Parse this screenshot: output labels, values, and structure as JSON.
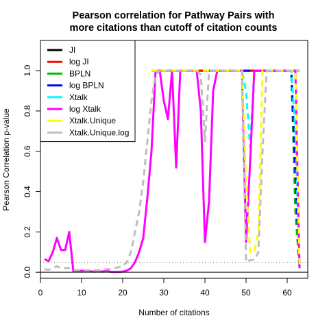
{
  "chart_data": {
    "type": "line",
    "title_lines": [
      "Pearson correlation for Pathway Pairs with",
      "more citations than cutoff of citation counts"
    ],
    "xlabel": "Number of citations",
    "ylabel": "Pearson Correlation p-value",
    "xlim": [
      0,
      65
    ],
    "ylim": [
      -0.03,
      1.15
    ],
    "xticks": [
      0,
      10,
      20,
      30,
      40,
      50,
      60
    ],
    "yticks": [
      0.0,
      0.2,
      0.4,
      0.6,
      0.8,
      1.0
    ],
    "ytick_labels": [
      "0.0",
      "0.2",
      "0.4",
      "0.6",
      "0.8",
      "1.0"
    ],
    "reference_lines": [
      {
        "y": 0.05,
        "style": "dotted",
        "color": "#555555"
      },
      {
        "y": 0.0,
        "style": "solid",
        "color": "#000000"
      }
    ],
    "legend_position": "top-left",
    "series": [
      {
        "name": "JI",
        "color": "#000000",
        "dash": "solid",
        "x": [
          27,
          28,
          29,
          30,
          31,
          32,
          33,
          34,
          35,
          36,
          37,
          38,
          39,
          40,
          41,
          42,
          43,
          44,
          45,
          46,
          47,
          48,
          49,
          50,
          51,
          52,
          53,
          54,
          55,
          56,
          57,
          58,
          59,
          60,
          61,
          62,
          63
        ],
        "y": [
          1,
          1,
          1,
          1,
          1,
          1,
          1,
          1,
          1,
          1,
          1,
          1,
          1,
          1,
          1,
          1,
          1,
          1,
          1,
          1,
          1,
          1,
          1,
          1,
          1,
          1,
          1,
          1,
          1,
          1,
          1,
          1,
          1,
          1,
          1,
          1,
          1
        ]
      },
      {
        "name": "log JI",
        "color": "#ff0000",
        "dash": "solid",
        "x": [
          27,
          28,
          29,
          30,
          31,
          32,
          33,
          34,
          35,
          36,
          37,
          38,
          39,
          40,
          41,
          42,
          43,
          44,
          45,
          46,
          47,
          48,
          49,
          50,
          51,
          52,
          53,
          54,
          55,
          56,
          57,
          58,
          59,
          60,
          61,
          62,
          63
        ],
        "y": [
          1,
          1,
          1,
          1,
          1,
          1,
          1,
          1,
          1,
          1,
          1,
          1,
          1,
          1,
          1,
          1,
          1,
          1,
          1,
          1,
          1,
          1,
          1,
          1,
          1,
          1,
          1,
          1,
          1,
          1,
          1,
          1,
          1,
          1,
          1,
          1,
          1
        ]
      },
      {
        "name": "BPLN",
        "color": "#00bb00",
        "dash": "dash",
        "x": [
          27,
          30,
          35,
          40,
          45,
          50,
          55,
          60,
          61,
          62,
          63
        ],
        "y": [
          1,
          1,
          1,
          1,
          1,
          1,
          1,
          1,
          1,
          0.3,
          0.02
        ]
      },
      {
        "name": "log BPLN",
        "color": "#0000ff",
        "dash": "dash",
        "x": [
          27,
          30,
          35,
          40,
          45,
          48,
          49,
          50,
          51,
          52,
          55,
          60,
          61,
          62,
          63
        ],
        "y": [
          1,
          1,
          1,
          1,
          1,
          1,
          1,
          1,
          1,
          1,
          1,
          1,
          1,
          0.5,
          0.02
        ]
      },
      {
        "name": "Xtalk",
        "color": "#00ffff",
        "dash": "dash",
        "x": [
          27,
          30,
          35,
          40,
          45,
          48,
          49,
          50,
          51,
          52,
          55,
          60,
          61,
          62,
          63
        ],
        "y": [
          1,
          1,
          1,
          1,
          1,
          1,
          1,
          0.9,
          0.62,
          1,
          1,
          1,
          1,
          0.7,
          0.02
        ]
      },
      {
        "name": "log Xtalk",
        "color": "#ff00ff",
        "dash": "solid",
        "x": [
          1,
          2,
          3,
          4,
          5,
          6,
          7,
          8,
          9,
          10,
          11,
          12,
          13,
          14,
          15,
          16,
          17,
          18,
          19,
          20,
          21,
          22,
          23,
          24,
          25,
          26,
          27,
          28,
          29,
          30,
          31,
          32,
          33,
          34,
          35,
          36,
          37,
          38,
          39,
          40,
          41,
          42,
          43,
          44,
          45,
          46,
          47,
          48,
          49,
          50,
          51,
          52,
          53,
          54,
          55,
          56,
          57,
          58,
          59,
          60,
          61,
          62,
          63
        ],
        "y": [
          0.065,
          0.055,
          0.1,
          0.17,
          0.11,
          0.11,
          0.2,
          0.005,
          0.005,
          0.008,
          0.005,
          0.005,
          0.003,
          0.005,
          0.003,
          0.008,
          0.002,
          0.002,
          0.002,
          0.003,
          0.008,
          0.02,
          0.05,
          0.1,
          0.17,
          0.37,
          0.6,
          1.0,
          1.0,
          0.85,
          0.76,
          1.0,
          0.52,
          1.0,
          1.0,
          1.0,
          1.0,
          1.0,
          0.8,
          0.15,
          0.35,
          0.9,
          1.0,
          1.0,
          1.0,
          1.0,
          1.0,
          1.0,
          1.0,
          0.15,
          0.55,
          1.0,
          1.0,
          1.0,
          1.0,
          1.0,
          1.0,
          1.0,
          1.0,
          1.0,
          1.0,
          1.0,
          0.02
        ]
      },
      {
        "name": "Xtalk.Unique",
        "color": "#ffff00",
        "dash": "dash",
        "x": [
          27,
          30,
          35,
          40,
          45,
          48,
          49,
          50,
          51,
          52,
          53,
          54,
          55,
          60,
          61,
          62,
          63
        ],
        "y": [
          1,
          1,
          1,
          1,
          1,
          1,
          1,
          0.45,
          0.1,
          0.1,
          0.2,
          1,
          1,
          1,
          1,
          1,
          0.02
        ]
      },
      {
        "name": "Xtalk.Unique.log",
        "color": "#bebebe",
        "dash": "dash",
        "x": [
          1,
          2,
          3,
          4,
          5,
          6,
          7,
          8,
          9,
          10,
          11,
          12,
          13,
          14,
          15,
          16,
          17,
          18,
          19,
          20,
          21,
          22,
          23,
          24,
          25,
          26,
          27,
          28,
          29,
          30,
          35,
          38,
          39,
          40,
          41,
          42,
          45,
          48,
          49,
          50,
          51,
          52,
          53,
          54,
          55,
          60,
          63
        ],
        "y": [
          0.015,
          0.012,
          0.02,
          0.03,
          0.02,
          0.02,
          0.02,
          0.01,
          0.01,
          0.01,
          0.01,
          0.01,
          0.01,
          0.01,
          0.01,
          0.015,
          0.015,
          0.02,
          0.025,
          0.03,
          0.05,
          0.1,
          0.2,
          0.3,
          0.45,
          0.65,
          0.85,
          0.98,
          1.0,
          1.0,
          1.0,
          1.0,
          0.98,
          0.65,
          1.0,
          1.0,
          1.0,
          1.0,
          1.0,
          0.05,
          0.06,
          0.06,
          0.1,
          0.6,
          1.0,
          1.0,
          1.0
        ]
      }
    ]
  }
}
